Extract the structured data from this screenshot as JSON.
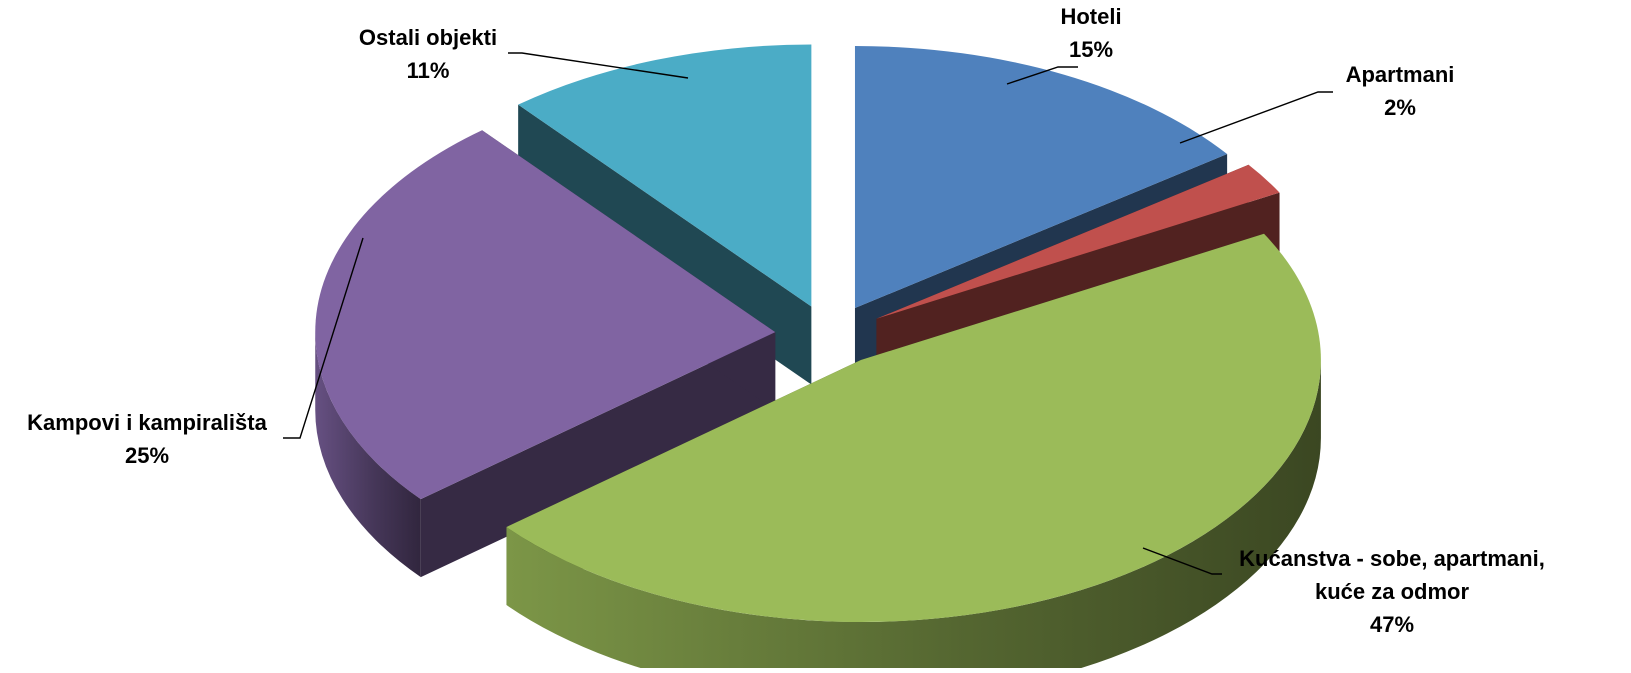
{
  "chart_data": {
    "type": "pie",
    "style": "3d-exploded",
    "title": "",
    "slices": [
      {
        "name": "Hoteli",
        "label_lines": [
          "Hoteli"
        ],
        "value": 15,
        "value_label": "15%",
        "color": "#4F81BD"
      },
      {
        "name": "Apartmani",
        "label_lines": [
          "Apartmani"
        ],
        "value": 2,
        "value_label": "2%",
        "color": "#C0504D"
      },
      {
        "name": "Kućanstva - sobe, apartmani, kuće za odmor",
        "label_lines": [
          "Kućanstva - sobe, apartmani,",
          "kuće za odmor"
        ],
        "value": 47,
        "value_label": "47%",
        "color": "#9BBB59"
      },
      {
        "name": "Kampovi i kampirališta",
        "label_lines": [
          "Kampovi i kampirališta"
        ],
        "value": 25,
        "value_label": "25%",
        "color": "#8064A2"
      },
      {
        "name": "Ostali objekti",
        "label_lines": [
          "Ostali objekti"
        ],
        "value": 11,
        "value_label": "11%",
        "color": "#4BACC6"
      }
    ]
  }
}
